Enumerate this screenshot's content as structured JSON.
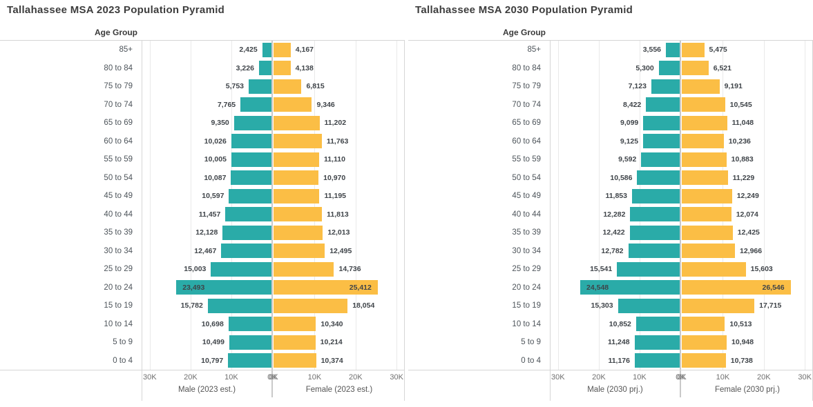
{
  "app": {
    "background": "#ffffff"
  },
  "colors": {
    "male_bar": "#2AABA8",
    "female_bar": "#FBBE45",
    "title_text": "#3D3D3D",
    "age_label_text": "#4D545A",
    "value_label_text": "#3F4449",
    "tick_text": "#6F6F6F",
    "axis_title_text": "#555555",
    "gridline": "#E9E9E9",
    "border": "#D5D5D5",
    "center_divider": "#C9C9C9"
  },
  "chart_data": [
    {
      "type": "bar",
      "subtype": "population-pyramid",
      "orientation": "horizontal",
      "title": "Tallahassee MSA 2023 Population Pyramid",
      "row_axis_label": "Age Group",
      "categories": [
        "85+",
        "80 to 84",
        "75 to 79",
        "70 to 74",
        "65 to 69",
        "60 to 64",
        "55 to 59",
        "50 to 54",
        "45 to 49",
        "40 to 44",
        "35 to 39",
        "30 to 34",
        "25 to 29",
        "20 to 24",
        "15 to 19",
        "10 to 14",
        "5 to 9",
        "0 to 4"
      ],
      "series": [
        {
          "name": "Male (2023 est.)",
          "side": "left",
          "color_key": "male_bar",
          "values": [
            2425,
            3226,
            5753,
            7765,
            9350,
            10026,
            10005,
            10087,
            10597,
            11457,
            12128,
            12467,
            15003,
            23493,
            15782,
            10698,
            10499,
            10797
          ]
        },
        {
          "name": "Female (2023 est.)",
          "side": "right",
          "color_key": "female_bar",
          "values": [
            4167,
            4138,
            6815,
            9346,
            11202,
            11763,
            11110,
            10970,
            11195,
            11813,
            12013,
            12495,
            14736,
            25412,
            18054,
            10340,
            10214,
            10374
          ]
        }
      ],
      "x_axis": {
        "max": 32000,
        "ticks": [
          {
            "value": 0,
            "label": "0K"
          },
          {
            "value": 10000,
            "label": "10K"
          },
          {
            "value": 20000,
            "label": "20K"
          },
          {
            "value": 30000,
            "label": "30K"
          }
        ]
      },
      "value_label_inside_threshold": 20000,
      "gridlines": true,
      "legend": "none"
    },
    {
      "type": "bar",
      "subtype": "population-pyramid",
      "orientation": "horizontal",
      "title": "Tallahassee MSA 2030 Population Pyramid",
      "row_axis_label": "Age Group",
      "categories": [
        "85+",
        "80 to 84",
        "75 to 79",
        "70 to 74",
        "65 to 69",
        "60 to 64",
        "55 to 59",
        "50 to 54",
        "45 to 49",
        "40 to 44",
        "35 to 39",
        "30 to 34",
        "25 to 29",
        "20 to 24",
        "15 to 19",
        "10 to 14",
        "5 to 9",
        "0 to 4"
      ],
      "series": [
        {
          "name": "Male (2030 prj.)",
          "side": "left",
          "color_key": "male_bar",
          "values": [
            3556,
            5300,
            7123,
            8422,
            9099,
            9125,
            9592,
            10586,
            11853,
            12282,
            12422,
            12782,
            15541,
            24548,
            15303,
            10852,
            11248,
            11176
          ]
        },
        {
          "name": "Female (2030 prj.)",
          "side": "right",
          "color_key": "female_bar",
          "values": [
            5475,
            6521,
            9191,
            10545,
            11048,
            10236,
            10883,
            11229,
            12249,
            12074,
            12425,
            12966,
            15603,
            26546,
            17715,
            10513,
            10948,
            10738
          ]
        }
      ],
      "x_axis": {
        "max": 32000,
        "ticks": [
          {
            "value": 0,
            "label": "0K"
          },
          {
            "value": 10000,
            "label": "10K"
          },
          {
            "value": 20000,
            "label": "20K"
          },
          {
            "value": 30000,
            "label": "30K"
          }
        ]
      },
      "value_label_inside_threshold": 20000,
      "gridlines": true,
      "legend": "none"
    }
  ]
}
